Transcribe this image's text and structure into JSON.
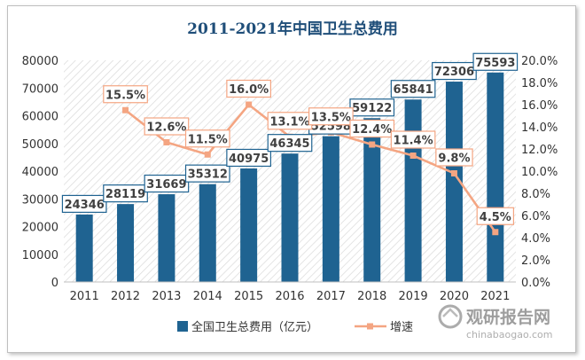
{
  "title": "2011-2021年中国卫生总费用",
  "chart_data": {
    "type": "bar",
    "title": "2011-2021年中国卫生总费用",
    "categories": [
      "2011",
      "2012",
      "2013",
      "2014",
      "2015",
      "2016",
      "2017",
      "2018",
      "2019",
      "2020",
      "2021"
    ],
    "series": [
      {
        "name": "全国卫生总费用（亿元）",
        "type": "bar",
        "axis": "left",
        "values": [
          24346,
          28119,
          31669,
          35312,
          40975,
          46345,
          52598,
          59122,
          65841,
          72306,
          75593
        ],
        "color": "#1f6391"
      },
      {
        "name": "增速",
        "type": "line",
        "axis": "right",
        "values": [
          null,
          15.5,
          12.6,
          11.5,
          16.0,
          13.1,
          13.5,
          12.4,
          11.4,
          9.8,
          4.5
        ],
        "color": "#f4a582"
      }
    ],
    "ylim_left": [
      0,
      80000
    ],
    "yticks_left": [
      "0",
      "10000",
      "20000",
      "30000",
      "40000",
      "50000",
      "60000",
      "70000",
      "80000"
    ],
    "ylim_right": [
      0,
      20
    ],
    "yticks_right": [
      "0.0%",
      "2.0%",
      "4.0%",
      "6.0%",
      "8.0%",
      "10.0%",
      "12.0%",
      "14.0%",
      "16.0%",
      "18.0%",
      "20.0%"
    ],
    "bar_labels": [
      "24346",
      "28119",
      "31669",
      "35312",
      "40975",
      "46345",
      "52598",
      "59122",
      "65841",
      "72306",
      "75593"
    ],
    "line_labels": [
      "",
      "15.5%",
      "12.6%",
      "11.5%",
      "16.0%",
      "13.1%",
      "13.5%",
      "12.4%",
      "11.4%",
      "9.8%",
      "4.5%"
    ],
    "legend": {
      "bar": "全国卫生总费用（亿元）",
      "line": "增速",
      "position": "bottom"
    },
    "grid": false
  },
  "watermark": {
    "brand": "观研报告网",
    "url": "chinabaogao.com"
  },
  "colors": {
    "bar": "#1f6391",
    "line": "#f4a582",
    "label_border_bar": "#1f6391",
    "label_border_line": "#f4a582"
  }
}
